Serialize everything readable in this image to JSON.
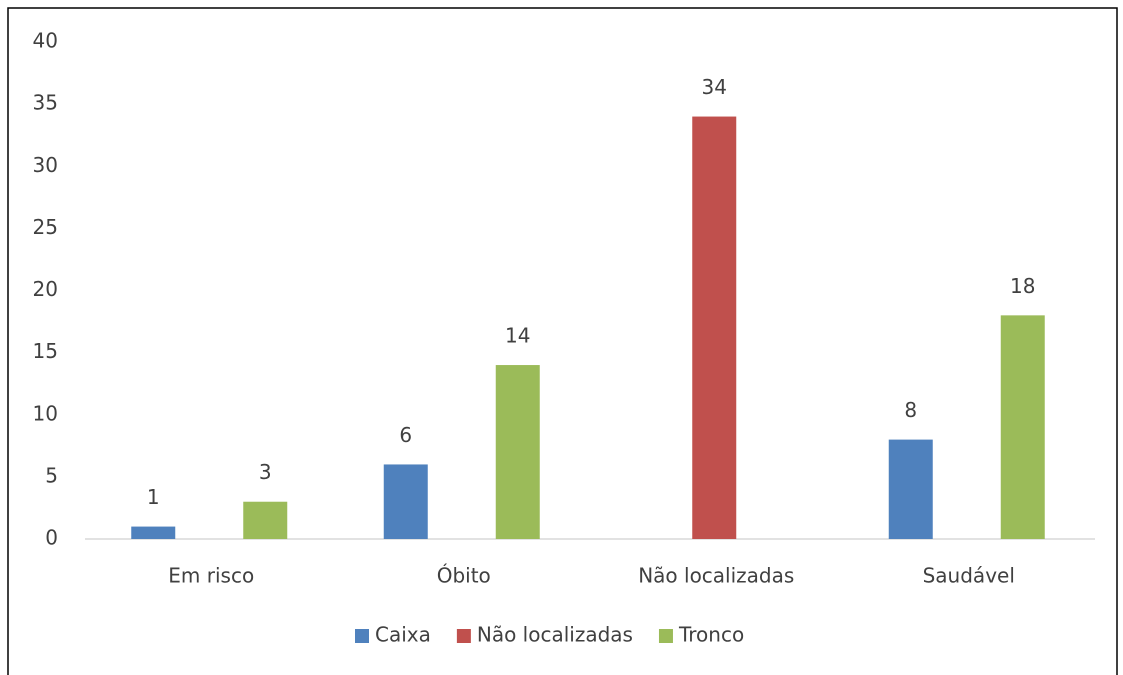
{
  "chart_data": {
    "type": "bar",
    "categories": [
      "Em risco",
      "Óbito",
      "Não localizadas",
      "Saudável"
    ],
    "series": [
      {
        "name": "Caixa",
        "color": "#4f81bd",
        "values": [
          1,
          6,
          null,
          8
        ]
      },
      {
        "name": "Não localizadas",
        "color": "#c0504d",
        "values": [
          null,
          null,
          34,
          null
        ]
      },
      {
        "name": "Tronco",
        "color": "#9bbb59",
        "values": [
          3,
          14,
          null,
          18
        ]
      }
    ],
    "ylim": [
      0,
      40
    ],
    "yticks": [
      0,
      5,
      10,
      15,
      20,
      25,
      30,
      35,
      40
    ],
    "grid": false,
    "legend": "bottom"
  }
}
